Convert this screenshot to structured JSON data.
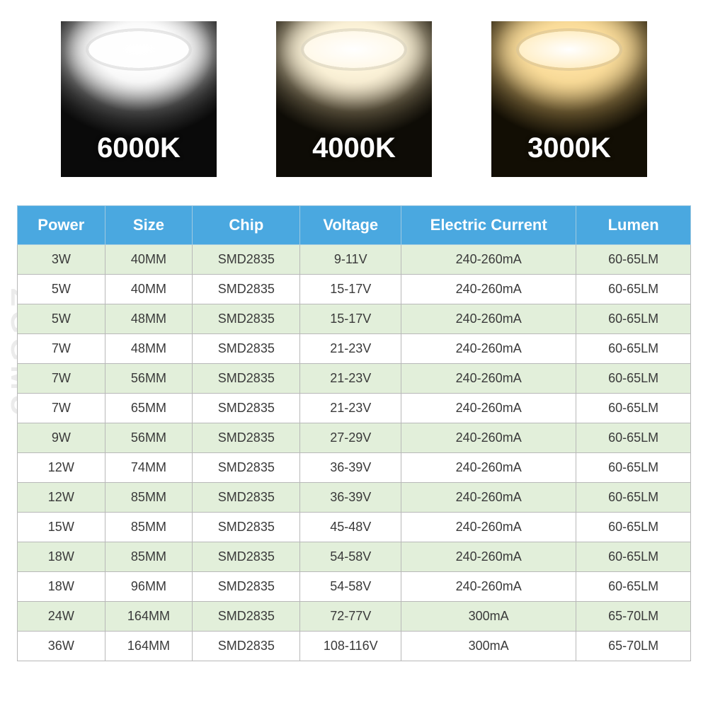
{
  "watermark": "ZGGMU",
  "swatches": [
    {
      "label": "6000K",
      "class": "sw-6000"
    },
    {
      "label": "4000K",
      "class": "sw-4000"
    },
    {
      "label": "3000K",
      "class": "sw-3000"
    }
  ],
  "table": {
    "header_bg": "#4aa8e0",
    "header_color": "#ffffff",
    "row_odd_bg": "#e2efda",
    "row_even_bg": "#ffffff",
    "border_color": "#b8b8b8",
    "columns": [
      "Power",
      "Size",
      "Chip",
      "Voltage",
      "Electric Current",
      "Lumen"
    ],
    "rows": [
      [
        "3W",
        "40MM",
        "SMD2835",
        "9-11V",
        "240-260mA",
        "60-65LM"
      ],
      [
        "5W",
        "40MM",
        "SMD2835",
        "15-17V",
        "240-260mA",
        "60-65LM"
      ],
      [
        "5W",
        "48MM",
        "SMD2835",
        "15-17V",
        "240-260mA",
        "60-65LM"
      ],
      [
        "7W",
        "48MM",
        "SMD2835",
        "21-23V",
        "240-260mA",
        "60-65LM"
      ],
      [
        "7W",
        "56MM",
        "SMD2835",
        "21-23V",
        "240-260mA",
        "60-65LM"
      ],
      [
        "7W",
        "65MM",
        "SMD2835",
        "21-23V",
        "240-260mA",
        "60-65LM"
      ],
      [
        "9W",
        "56MM",
        "SMD2835",
        "27-29V",
        "240-260mA",
        "60-65LM"
      ],
      [
        "12W",
        "74MM",
        "SMD2835",
        "36-39V",
        "240-260mA",
        "60-65LM"
      ],
      [
        "12W",
        "85MM",
        "SMD2835",
        "36-39V",
        "240-260mA",
        "60-65LM"
      ],
      [
        "15W",
        "85MM",
        "SMD2835",
        "45-48V",
        "240-260mA",
        "60-65LM"
      ],
      [
        "18W",
        "85MM",
        "SMD2835",
        "54-58V",
        "240-260mA",
        "60-65LM"
      ],
      [
        "18W",
        "96MM",
        "SMD2835",
        "54-58V",
        "240-260mA",
        "60-65LM"
      ],
      [
        "24W",
        "164MM",
        "SMD2835",
        "72-77V",
        "300mA",
        "65-70LM"
      ],
      [
        "36W",
        "164MM",
        "SMD2835",
        "108-116V",
        "300mA",
        "65-70LM"
      ]
    ]
  }
}
